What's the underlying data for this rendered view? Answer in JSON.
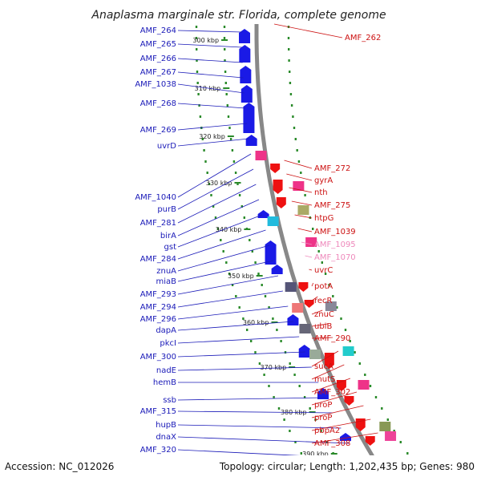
{
  "title": "Anaplasma marginale str. Florida, complete genome",
  "footer": {
    "accession": "Accession: NC_012026",
    "summary": "Topology: circular; Length: 1,202,435 bp; Genes: 980"
  },
  "colors": {
    "forward": "#1a1ae6",
    "reverse": "#ee1111",
    "label_left": "#1a1ab8",
    "label_right": "#cc1111",
    "label_pink": "#ee88bb",
    "backbone": "#888888",
    "dots": "#2a8a2a"
  },
  "ticks": [
    "300 kbp",
    "310 kbp",
    "320 kbp",
    "330 kbp",
    "340 kbp",
    "350 kbp",
    "360 kbp",
    "370 kbp",
    "380 kbp",
    "390 kbp"
  ],
  "left_labels": [
    "AMF_264",
    "AMF_265",
    "AMF_266",
    "AMF_267",
    "AMF_1038",
    "AMF_268",
    "AMF_269",
    "uvrD",
    "AMF_1040",
    "purB",
    "AMF_281",
    "birA",
    "gst",
    "AMF_284",
    "znuA",
    "miaB",
    "AMF_293",
    "AMF_294",
    "AMF_296",
    "dapA",
    "pkcI",
    "AMF_300",
    "nadE",
    "hemB",
    "ssb",
    "AMF_315",
    "hupB",
    "dnaX",
    "AMF_320"
  ],
  "right_labels": [
    "AMF_262",
    "AMF_272",
    "gyrA",
    "nth",
    "AMF_275",
    "htpG",
    "AMF_1039",
    "AMF_1095",
    "AMF_1070",
    "uvrC",
    "potA",
    "recR",
    "znuC",
    "ubiB",
    "AMF_290",
    "sucA",
    "mutS",
    "AMF_302",
    "proP",
    "proP",
    "pbpA2",
    "AMF_308"
  ],
  "pink_labels": [
    "AMF_1095",
    "AMF_1070"
  ]
}
